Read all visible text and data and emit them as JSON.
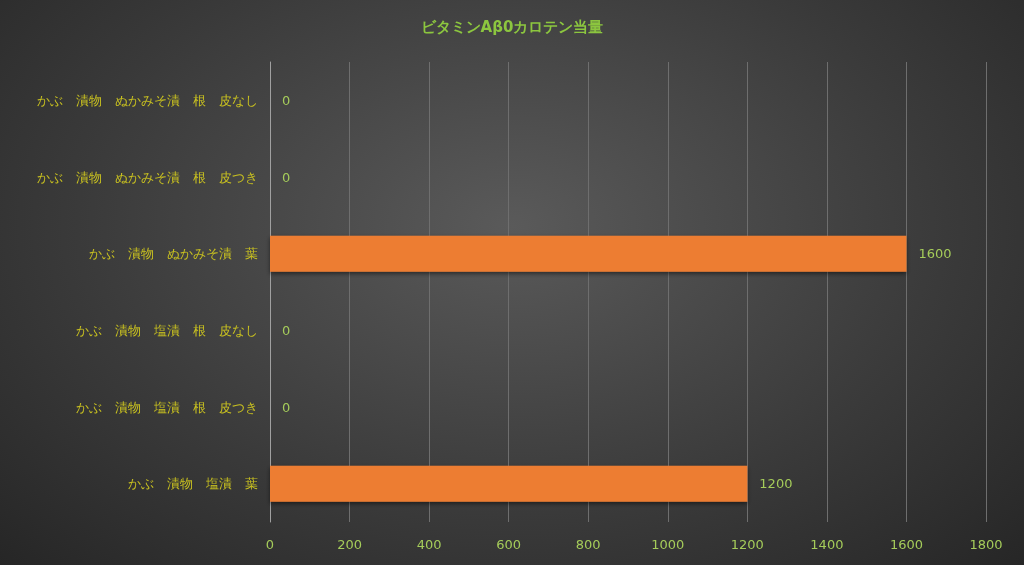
{
  "chart_data": {
    "type": "bar",
    "orientation": "horizontal",
    "title": "ビタミンAβ0カロテン当量",
    "categories": [
      "かぶ　漬物　ぬかみそ漬　根　皮なし",
      "かぶ　漬物　ぬかみそ漬　根　皮つき",
      "かぶ　漬物　ぬかみそ漬　葉",
      "かぶ　漬物　塩漬　根　皮なし",
      "かぶ　漬物　塩漬　根　皮つき",
      "かぶ　漬物　塩漬　葉"
    ],
    "values": [
      0,
      0,
      1600,
      0,
      0,
      1200
    ],
    "color": "#ed7d31",
    "xlim": [
      0,
      1800
    ],
    "xticks": [
      0,
      200,
      400,
      600,
      800,
      1000,
      1200,
      1400,
      1600,
      1800
    ],
    "grid": "x",
    "data_labels": true
  }
}
